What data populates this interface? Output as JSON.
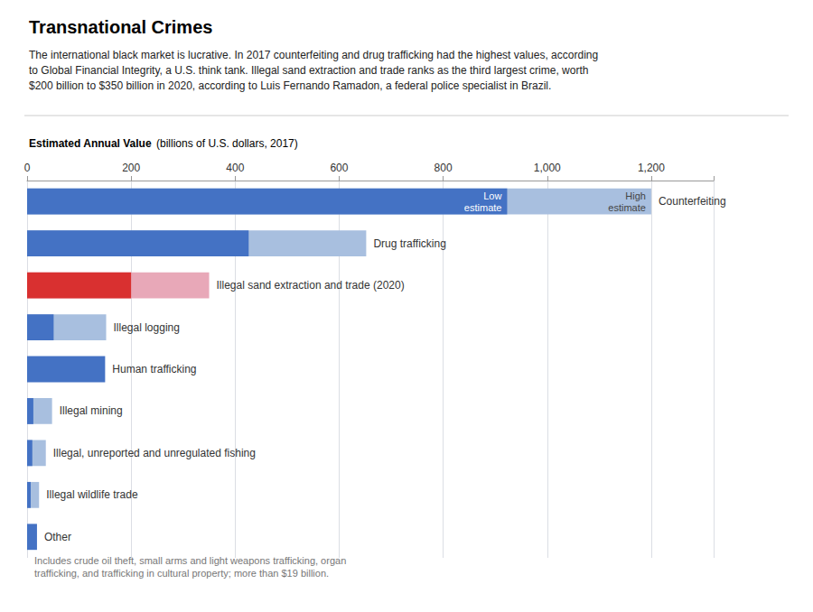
{
  "chart_data": {
    "type": "bar",
    "orientation": "horizontal",
    "title": "Transnational Crimes",
    "subtitle": [
      "The international black market is lucrative. In 2017 counterfeiting and drug trafficking had the highest values, according",
      "to Global Financial Integrity, a U.S. think tank. Illegal sand extraction and trade ranks as the third largest crime, worth",
      "$200 billion to $350 billion in 2020, according to Luis Fernando Ramadon, a federal police specialist in Brazil."
    ],
    "xlabel": [
      "Estimated Annual Value",
      "(billions of U.S. dollars, 2017)"
    ],
    "categories": [
      "Counterfeiting",
      "Drug trafficking",
      "Illegal sand extraction and trade (2020)",
      "Illegal logging",
      "Human trafficking",
      "Illegal mining",
      "Illegal, unreported and unregulated fishing",
      "Illegal wildlife trade",
      "Other"
    ],
    "series": [
      {
        "name": "High\nestimate",
        "values": [
          1200,
          652,
          350,
          152,
          null,
          48,
          36,
          23,
          null
        ],
        "colors": [
          "#A8BFDF",
          "#A8BFDF",
          "#e8a8b8",
          "#A8BFDF",
          "#A8BFDF",
          "#A8BFDF",
          "#A8BFDF",
          "#A8BFDF",
          "#A8BFDF"
        ]
      },
      {
        "name": "Low\nestimate",
        "values": [
          923,
          426,
          200,
          51,
          150,
          12,
          10,
          7,
          19
        ],
        "colors": [
          "#4472C4",
          "#4472C4",
          "#d93030",
          "#4472C4",
          "#4472C4",
          "#4472C4",
          "#4472C4",
          "#4472C4",
          "#4472C4"
        ]
      }
    ],
    "annotation": "Includes crude oil theft, small arms and light weapons trafficking, organ\ntrafficking, and trafficking in cultural property; more than $19 billion.",
    "xlim": [
      0,
      1320
    ],
    "xticks": [
      0,
      200,
      400,
      600,
      800,
      {
        "value": 1000,
        "label": "1,000"
      },
      {
        "value": 1200,
        "label": "1,200"
      }
    ],
    "grid": true,
    "tick_labels": "x"
  }
}
